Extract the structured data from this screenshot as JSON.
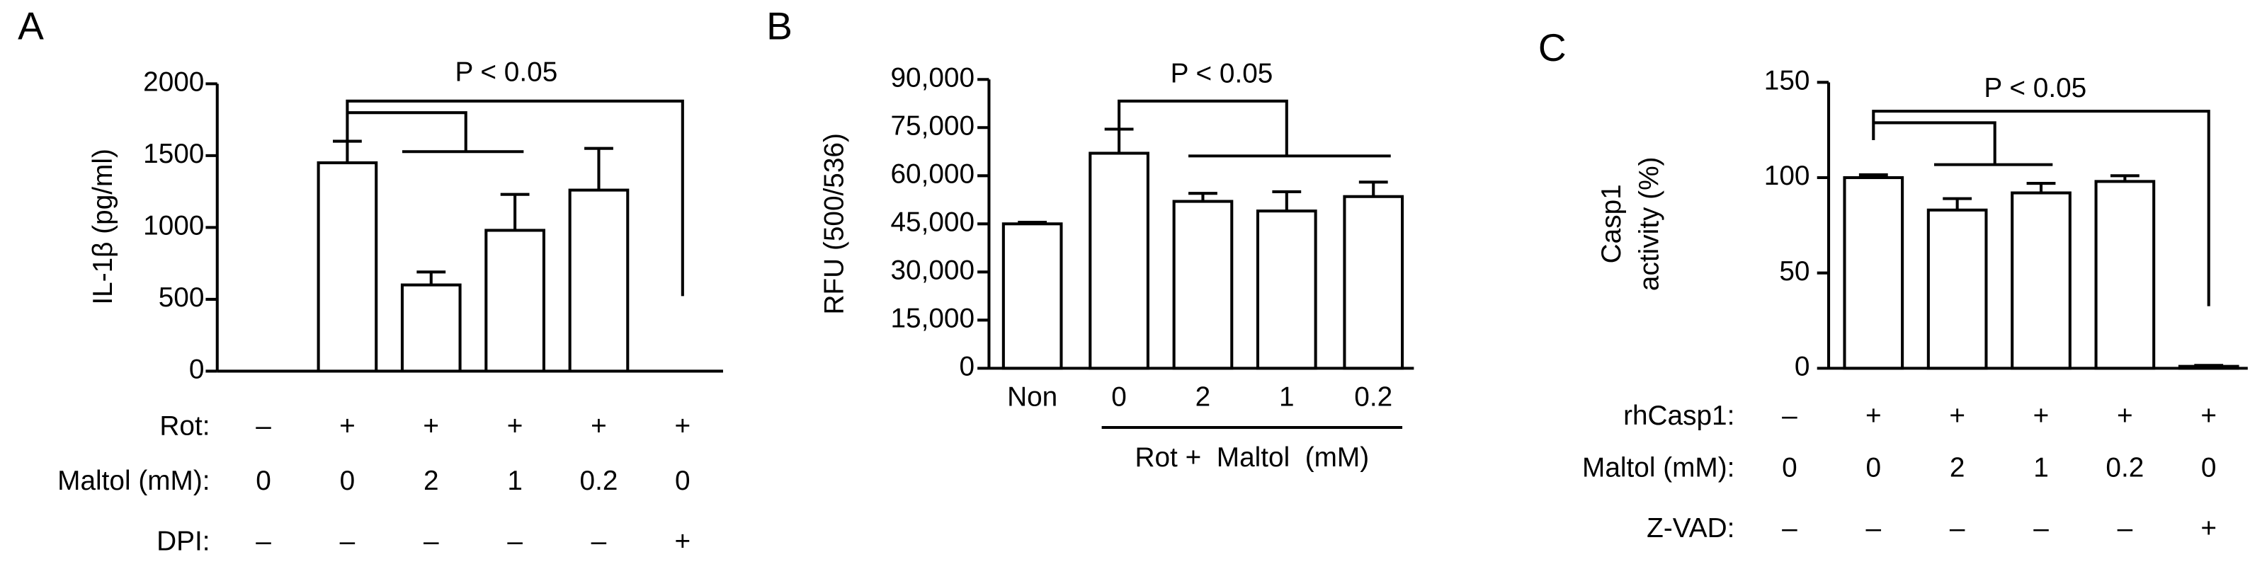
{
  "chart_data": [
    {
      "type": "bar",
      "panel_label": "A",
      "ylabel": "IL-1β (pg/ml)",
      "annotation": "P < 0.05",
      "ylim": [
        0,
        2000
      ],
      "yticks": [
        0,
        500,
        1000,
        1500,
        2000
      ],
      "color": "#ffffff",
      "values": [
        0,
        1450,
        600,
        980,
        1260,
        0
      ],
      "errors": [
        null,
        150,
        90,
        250,
        290,
        null
      ],
      "condition_rows": [
        {
          "label": "Rot:",
          "values": [
            "–",
            "+",
            "+",
            "+",
            "+",
            "+"
          ]
        },
        {
          "label": "Maltol (mM):",
          "values": [
            "0",
            "0",
            "2",
            "1",
            "0.2",
            "0"
          ]
        },
        {
          "label": "DPI:",
          "values": [
            "–",
            "–",
            "–",
            "–",
            "–",
            "+"
          ]
        }
      ]
    },
    {
      "type": "bar",
      "panel_label": "B",
      "ylabel": "RFU  (500/536)",
      "annotation": "P < 0.05",
      "ylim": [
        0,
        90000
      ],
      "yticks": [
        0,
        {
          "value": 15000,
          "label": "15,000"
        },
        {
          "value": 30000,
          "label": "30,000"
        },
        {
          "value": 45000,
          "label": "45,000"
        },
        {
          "value": 60000,
          "label": "60,000"
        },
        {
          "value": 75000,
          "label": "75,000"
        },
        {
          "value": 90000,
          "label": "90,000"
        }
      ],
      "color": "#ffffff",
      "categories": [
        "Non",
        "0",
        "2",
        "1",
        "0.2"
      ],
      "group_label": "Rot +  Maltol  (mM)",
      "values": [
        45000,
        67000,
        52000,
        49000,
        53500
      ],
      "errors": [
        500,
        7500,
        2500,
        6000,
        4500
      ]
    },
    {
      "type": "bar",
      "panel_label": "C",
      "ylabel": [
        "Casp1",
        "activity (%)"
      ],
      "annotation": "P < 0.05",
      "ylim": [
        0,
        150
      ],
      "yticks": [
        0,
        50,
        100,
        150
      ],
      "color": "#ffffff",
      "values": [
        0,
        100,
        83,
        92,
        98,
        1
      ],
      "errors": [
        null,
        1.5,
        6,
        5,
        3,
        0.5
      ],
      "condition_rows": [
        {
          "label": "rhCasp1:",
          "values": [
            "–",
            "+",
            "+",
            "+",
            "+",
            "+"
          ]
        },
        {
          "label": "Maltol (mM):",
          "values": [
            "0",
            "0",
            "2",
            "1",
            "0.2",
            "0"
          ]
        },
        {
          "label": "Z-VAD:",
          "values": [
            "–",
            "–",
            "–",
            "–",
            "–",
            "+"
          ]
        }
      ]
    }
  ]
}
